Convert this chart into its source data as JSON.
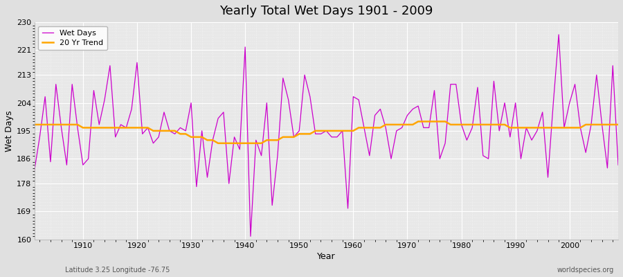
{
  "title": "Yearly Total Wet Days 1901 - 2009",
  "xlabel": "Year",
  "ylabel": "Wet Days",
  "subtitle_left": "Latitude 3.25 Longitude -76.75",
  "watermark": "worldspecies.org",
  "ylim": [
    160,
    230
  ],
  "yticks": [
    160,
    169,
    178,
    186,
    195,
    204,
    213,
    221,
    230
  ],
  "line_color": "#CC00CC",
  "trend_color": "#FFA500",
  "fig_bg_color": "#E0E0E0",
  "plot_bg_color": "#E8E8E8",
  "years": [
    1901,
    1902,
    1903,
    1904,
    1905,
    1906,
    1907,
    1908,
    1909,
    1910,
    1911,
    1912,
    1913,
    1914,
    1915,
    1916,
    1917,
    1918,
    1919,
    1920,
    1921,
    1922,
    1923,
    1924,
    1925,
    1926,
    1927,
    1928,
    1929,
    1930,
    1931,
    1932,
    1933,
    1934,
    1935,
    1936,
    1937,
    1938,
    1939,
    1940,
    1941,
    1942,
    1943,
    1944,
    1945,
    1946,
    1947,
    1948,
    1949,
    1950,
    1951,
    1952,
    1953,
    1954,
    1955,
    1956,
    1957,
    1958,
    1959,
    1960,
    1961,
    1962,
    1963,
    1964,
    1965,
    1966,
    1967,
    1968,
    1969,
    1970,
    1971,
    1972,
    1973,
    1974,
    1975,
    1976,
    1977,
    1978,
    1979,
    1980,
    1981,
    1982,
    1983,
    1984,
    1985,
    1986,
    1987,
    1988,
    1989,
    1990,
    1991,
    1992,
    1993,
    1994,
    1995,
    1996,
    1997,
    1998,
    1999,
    2000,
    2001,
    2002,
    2003,
    2004,
    2005,
    2006,
    2007,
    2008,
    2009
  ],
  "wet_days": [
    182,
    193,
    206,
    185,
    210,
    196,
    184,
    210,
    196,
    184,
    186,
    208,
    197,
    205,
    216,
    193,
    197,
    196,
    202,
    217,
    194,
    196,
    191,
    193,
    201,
    195,
    194,
    196,
    195,
    204,
    177,
    195,
    180,
    192,
    199,
    201,
    178,
    193,
    189,
    222,
    161,
    192,
    187,
    204,
    171,
    187,
    212,
    205,
    193,
    195,
    213,
    206,
    194,
    194,
    195,
    193,
    193,
    195,
    170,
    206,
    205,
    196,
    187,
    200,
    202,
    196,
    186,
    195,
    196,
    200,
    202,
    203,
    196,
    196,
    208,
    186,
    191,
    210,
    210,
    197,
    192,
    196,
    209,
    187,
    186,
    211,
    195,
    204,
    193,
    204,
    186,
    196,
    192,
    195,
    201,
    180,
    204,
    226,
    196,
    204,
    210,
    196,
    188,
    197,
    213,
    197,
    183,
    216,
    184
  ],
  "trend": [
    197,
    197,
    197,
    197,
    197,
    197,
    197,
    197,
    197,
    196,
    196,
    196,
    196,
    196,
    196,
    196,
    196,
    196,
    196,
    196,
    196,
    196,
    195,
    195,
    195,
    195,
    195,
    194,
    194,
    193,
    193,
    193,
    192,
    192,
    191,
    191,
    191,
    191,
    191,
    191,
    191,
    191,
    191,
    192,
    192,
    192,
    193,
    193,
    193,
    194,
    194,
    194,
    195,
    195,
    195,
    195,
    195,
    195,
    195,
    195,
    196,
    196,
    196,
    196,
    196,
    197,
    197,
    197,
    197,
    197,
    197,
    198,
    198,
    198,
    198,
    198,
    198,
    197,
    197,
    197,
    197,
    197,
    197,
    197,
    197,
    197,
    197,
    197,
    196,
    196,
    196,
    196,
    196,
    196,
    196,
    196,
    196,
    196,
    196,
    196,
    196,
    196,
    197,
    197,
    197,
    197,
    197,
    197,
    197
  ]
}
